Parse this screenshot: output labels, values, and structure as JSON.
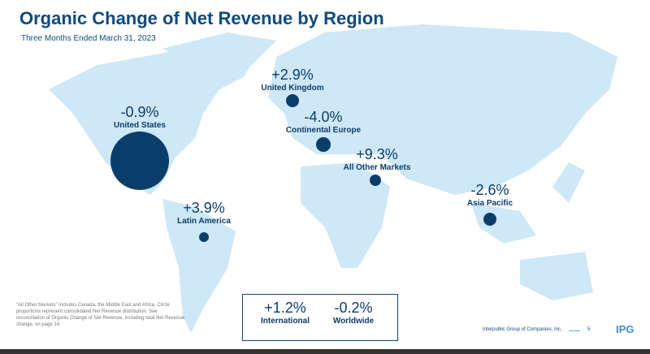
{
  "title": "Organic Change of Net Revenue by Region",
  "subtitle": "Three Months Ended March 31, 2023",
  "regions": [
    {
      "name": "United States",
      "change": "-0.9%"
    },
    {
      "name": "United Kingdom",
      "change": "+2.9%"
    },
    {
      "name": "Continental Europe",
      "change": "-4.0%"
    },
    {
      "name": "All Other Markets",
      "change": "+9.3%"
    },
    {
      "name": "Asia Pacific",
      "change": "-2.6%"
    },
    {
      "name": "Latin America",
      "change": "+3.9%"
    }
  ],
  "summary": [
    {
      "name": "International",
      "change": "+1.2%"
    },
    {
      "name": "Worldwide",
      "change": "-0.2%"
    }
  ],
  "footnote": "\"All Other Markets\" includes Canada, the Middle East and Africa. Circle proportions represent consolidated Net Revenue distribution. See reconciliation of Organic Change of Net Revenue, including total Net Revenue change, on page 14.",
  "footer": {
    "company": "Interpublic Group of Companies, Inc.",
    "page": "5",
    "logo": "IPG"
  },
  "colors": {
    "map": "#cfe8f7",
    "accent": "#0b3d6b"
  }
}
